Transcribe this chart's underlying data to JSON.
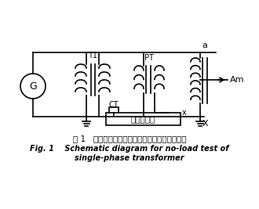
{
  "title_cn": "图 1   单相变压器空载电流和空载损耗测量原理图",
  "title_en_line1": "Fig. 1    Schematic diagram for no-load test of",
  "title_en_line2": "single-phase transformer",
  "bg_color": "#ffffff",
  "line_color": "#000000",
  "labels": {
    "G": "G",
    "T1": "T1",
    "PT": "PT",
    "CT": "CT",
    "analyzer": "功率分析仪",
    "Am": "Am",
    "a": "a",
    "x_small": "x",
    "X_big": "X"
  }
}
